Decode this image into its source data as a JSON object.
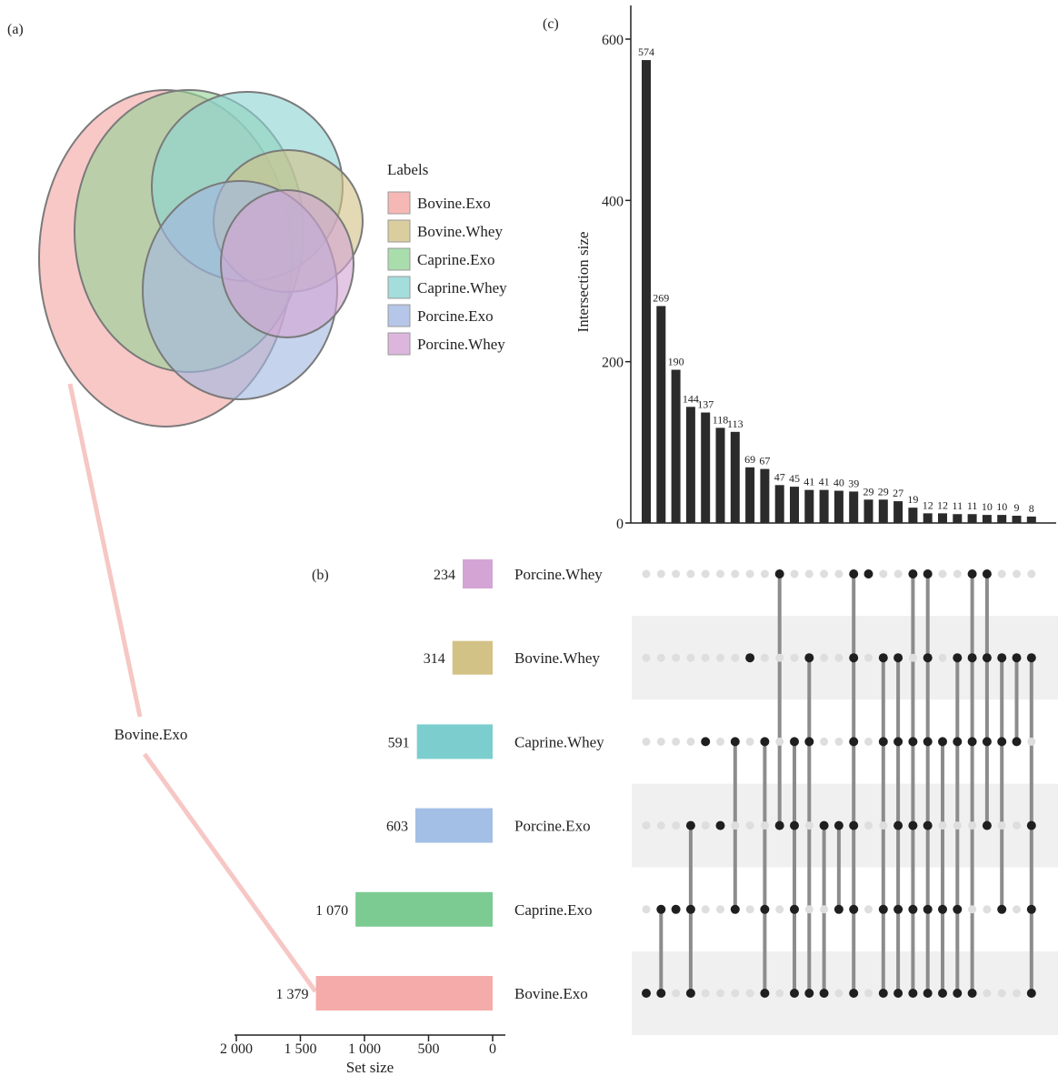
{
  "panel_labels": {
    "a": "(a)",
    "b": "(b)",
    "c": "(c)"
  },
  "venn": {
    "legend_title": "Labels",
    "callout_label": "Bovine.Exo",
    "sets": [
      {
        "name": "Bovine.Exo",
        "color": "#F4A6A3"
      },
      {
        "name": "Bovine.Whey",
        "color": "#D2C286"
      },
      {
        "name": "Caprine.Exo",
        "color": "#95D497"
      },
      {
        "name": "Caprine.Whey",
        "color": "#8CD4D3"
      },
      {
        "name": "Porcine.Exo",
        "color": "#A3B8E2"
      },
      {
        "name": "Porcine.Whey",
        "color": "#D4A4D4"
      }
    ]
  },
  "chart_data": [
    {
      "type": "bar",
      "title": "",
      "ylabel": "Intersection size",
      "ylim": [
        0,
        640
      ],
      "yticks": [
        0,
        200,
        400,
        600
      ],
      "values": [
        574,
        269,
        190,
        144,
        137,
        118,
        113,
        69,
        67,
        47,
        45,
        41,
        41,
        40,
        39,
        29,
        29,
        27,
        19,
        12,
        12,
        11,
        11,
        10,
        10,
        9,
        8
      ],
      "bar_color": "#2b2b2b",
      "matrix_sets": [
        "Porcine.Whey",
        "Bovine.Whey",
        "Caprine.Whey",
        "Porcine.Exo",
        "Caprine.Exo",
        "Bovine.Exo"
      ],
      "matrix_columns": [
        [
          "Bovine.Exo"
        ],
        [
          "Bovine.Exo",
          "Caprine.Exo"
        ],
        [
          "Caprine.Exo"
        ],
        [
          "Bovine.Exo",
          "Caprine.Exo",
          "Porcine.Exo"
        ],
        [
          "Caprine.Whey"
        ],
        [
          "Porcine.Exo"
        ],
        [
          "Caprine.Exo",
          "Caprine.Whey"
        ],
        [
          "Bovine.Whey"
        ],
        [
          "Bovine.Exo",
          "Caprine.Exo",
          "Caprine.Whey"
        ],
        [
          "Porcine.Whey",
          "Porcine.Exo"
        ],
        [
          "Bovine.Exo",
          "Caprine.Exo",
          "Porcine.Exo",
          "Caprine.Whey"
        ],
        [
          "Bovine.Exo",
          "Caprine.Whey",
          "Bovine.Whey"
        ],
        [
          "Bovine.Exo",
          "Porcine.Exo"
        ],
        [
          "Caprine.Exo",
          "Porcine.Exo"
        ],
        [
          "Bovine.Exo",
          "Caprine.Exo",
          "Porcine.Exo",
          "Caprine.Whey",
          "Bovine.Whey",
          "Porcine.Whey"
        ],
        [
          "Porcine.Whey"
        ],
        [
          "Bovine.Exo",
          "Caprine.Exo",
          "Caprine.Whey",
          "Bovine.Whey"
        ],
        [
          "Bovine.Exo",
          "Caprine.Exo",
          "Porcine.Exo",
          "Caprine.Whey",
          "Bovine.Whey"
        ],
        [
          "Bovine.Exo",
          "Caprine.Exo",
          "Porcine.Exo",
          "Caprine.Whey",
          "Porcine.Whey"
        ],
        [
          "Bovine.Exo",
          "Caprine.Exo",
          "Porcine.Exo",
          "Caprine.Whey",
          "Bovine.Whey",
          "Porcine.Whey"
        ],
        [
          "Bovine.Exo",
          "Caprine.Exo",
          "Caprine.Whey"
        ],
        [
          "Bovine.Exo",
          "Caprine.Exo",
          "Caprine.Whey",
          "Bovine.Whey"
        ],
        [
          "Bovine.Exo",
          "Caprine.Whey",
          "Bovine.Whey",
          "Porcine.Whey"
        ],
        [
          "Porcine.Exo",
          "Caprine.Whey",
          "Bovine.Whey",
          "Porcine.Whey"
        ],
        [
          "Caprine.Exo",
          "Caprine.Whey",
          "Bovine.Whey"
        ],
        [
          "Caprine.Whey",
          "Bovine.Whey"
        ],
        [
          "Bovine.Exo",
          "Caprine.Exo",
          "Porcine.Exo",
          "Bovine.Whey"
        ]
      ]
    },
    {
      "type": "bar",
      "orientation": "horizontal",
      "xlabel": "Set size",
      "xlim": [
        2000,
        0
      ],
      "xticks": [
        2000,
        1500,
        1000,
        500,
        0
      ],
      "xtick_labels": [
        "2 000",
        "1 500",
        "1 000",
        "500",
        "0"
      ],
      "categories": [
        "Porcine.Whey",
        "Bovine.Whey",
        "Caprine.Whey",
        "Porcine.Exo",
        "Caprine.Exo",
        "Bovine.Exo"
      ],
      "values": [
        234,
        314,
        591,
        603,
        1070,
        1379
      ],
      "value_labels": [
        "234",
        "314",
        "591",
        "603",
        "1 070",
        "1 379"
      ],
      "colors": [
        "#D4A4D4",
        "#D2C286",
        "#7CCECE",
        "#A3BFE6",
        "#7BCB92",
        "#F4ABA9"
      ]
    }
  ]
}
